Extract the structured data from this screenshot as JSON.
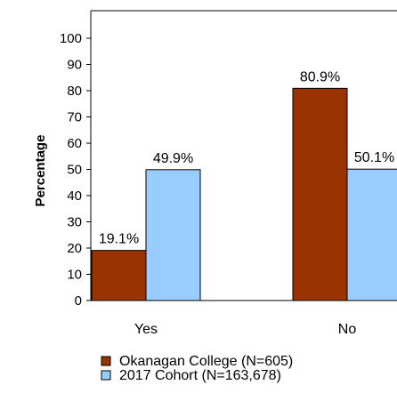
{
  "chart_data": {
    "type": "bar",
    "title": "",
    "xlabel": "",
    "ylabel": "Percentage",
    "ylim": [
      0,
      100
    ],
    "yticks": [
      0,
      10,
      20,
      30,
      40,
      50,
      60,
      70,
      80,
      90,
      100
    ],
    "categories": [
      "Yes",
      "No"
    ],
    "series": [
      {
        "name": "Okanagan College (N=605)",
        "values": [
          19.1,
          80.9
        ],
        "labels": [
          "19.1%",
          "80.9%"
        ],
        "color": "#993300"
      },
      {
        "name": "2017 Cohort (N=163,678)",
        "values": [
          49.9,
          50.1
        ],
        "labels": [
          "49.9%",
          "50.1%"
        ],
        "color": "#99ccff"
      }
    ],
    "grid": false,
    "legend_position": "bottom"
  }
}
